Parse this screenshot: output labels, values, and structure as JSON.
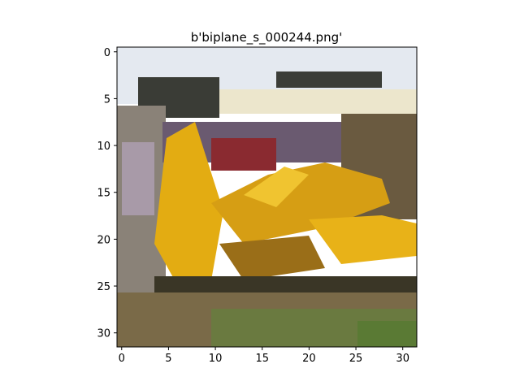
{
  "title": "b'biplane_s_000244.png'",
  "image": {
    "grid_size": [
      32,
      32
    ],
    "subject": "yellow biplane on a grassy airfield",
    "dominant_colors": {
      "sky": "#e6ecf2",
      "plane_yellow": "#e0aa10",
      "plane_shadow": "#a07010",
      "ground": "#6e6a40",
      "grass": "#627a38",
      "dark_edges": "#2a2a26"
    }
  },
  "axes": {
    "x_ticks": [
      "0",
      "5",
      "10",
      "15",
      "20",
      "25",
      "30"
    ],
    "y_ticks": [
      "0",
      "5",
      "10",
      "15",
      "20",
      "25",
      "30"
    ]
  }
}
